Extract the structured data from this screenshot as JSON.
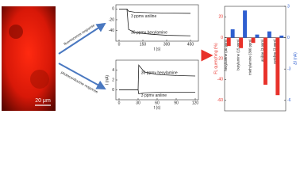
{
  "image": {
    "scale_bar": "20 μm"
  },
  "arrows": [
    "fluorescence response",
    "photoconductive response"
  ],
  "chart_data": [
    {
      "type": "line",
      "xlabel": "t (s)",
      "x": [
        0,
        50,
        60,
        100,
        200,
        300,
        450
      ],
      "xlim": [
        -20,
        500
      ],
      "xticks": [
        0,
        150,
        300,
        450
      ],
      "ylim": [
        -60,
        8
      ],
      "yticks": [
        -40,
        -20,
        0
      ],
      "series": [
        {
          "name": "30 ppmv hexylamine",
          "color": "#222222",
          "values": [
            0,
            0,
            -38,
            -44,
            -47,
            -49,
            -50
          ]
        },
        {
          "name": "3 ppmv aniline",
          "color": "#222222",
          "values": [
            0,
            0,
            -4,
            -6,
            -7,
            -7.5,
            -8
          ]
        }
      ]
    },
    {
      "type": "line",
      "xlabel": "t (s)",
      "ylabel": "I (nA)",
      "x": [
        0,
        30,
        31,
        40,
        60,
        90,
        120
      ],
      "xlim": [
        -5,
        125
      ],
      "xticks": [
        0,
        30,
        60,
        90,
        120
      ],
      "ylim": [
        -2,
        6
      ],
      "yticks": [
        0,
        2,
        4
      ],
      "series": [
        {
          "name": "30 ppmv hexylamine",
          "color": "#222222",
          "values": [
            0,
            0,
            5,
            3.6,
            3.1,
            2.9,
            2.8
          ]
        },
        {
          "name": "3 ppmv aniline",
          "color": "#222222",
          "values": [
            0,
            0,
            -0.8,
            -0.6,
            -0.5,
            -0.5,
            -0.5
          ]
        }
      ]
    },
    {
      "type": "bar",
      "ylabel": "FL quenching (%)",
      "y2label": "ΔI (nA)",
      "categories": [
        "hexylamine (30 ppm)",
        "butylamine (15 ppm)",
        "triethylamine (300 ppm)",
        "aniline (3 ppm)",
        "pyridine (3 ppm)"
      ],
      "ylim": [
        -70,
        30
      ],
      "yticks": [
        -60,
        -40,
        -20,
        0,
        20
      ],
      "y2lim": [
        -7,
        3
      ],
      "y2ticks": [
        -6,
        -3,
        0,
        3
      ],
      "series": [
        {
          "color": "#e8312a",
          "values": [
            -8,
            -10,
            -5,
            -45,
            -55
          ]
        },
        {
          "color": "#2f5fd0",
          "axis": "y2",
          "values": [
            0.8,
            2.6,
            0.3,
            0.6,
            0.2
          ]
        }
      ]
    }
  ]
}
